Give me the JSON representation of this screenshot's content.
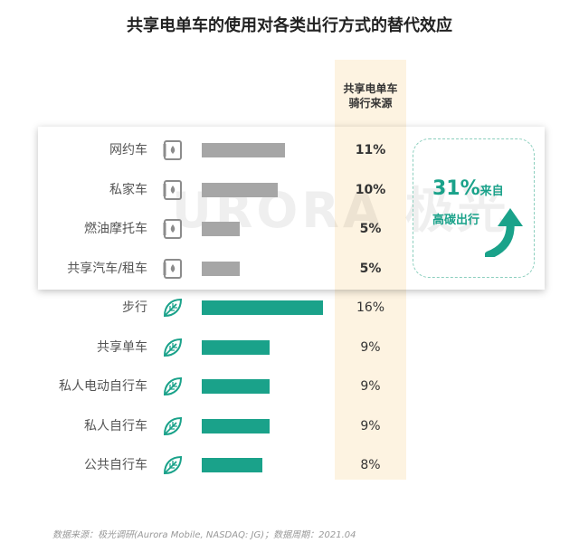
{
  "title": "共享电单车的使用对各类出行方式的替代效应",
  "column_header_line1": "共享电单车",
  "column_header_line2": "骑行来源",
  "watermark": "URORA 极光",
  "callout": {
    "big": "31%",
    "small": "来自",
    "line2": "高碳出行"
  },
  "footer": "数据来源：极光调研(Aurora Mobile, NASDAQ: JG)；数据周期：2021.04",
  "colors": {
    "high_carbon": "#a6a6a6",
    "low_carbon": "#1aa28a",
    "column_bg": "#fdf3e1"
  },
  "chart_data": {
    "type": "bar",
    "orientation": "horizontal",
    "categories": [
      "网约车",
      "私家车",
      "燃油摩托车",
      "共享汽车/租车",
      "步行",
      "共享单车",
      "私人电动自行车",
      "私人自行车",
      "公共自行车"
    ],
    "values": [
      11,
      10,
      5,
      5,
      16,
      9,
      9,
      9,
      8
    ],
    "labels": [
      "11%",
      "10%",
      "5%",
      "5%",
      "16%",
      "9%",
      "9%",
      "9%",
      "8%"
    ],
    "groups": [
      "high",
      "high",
      "high",
      "high",
      "low",
      "low",
      "low",
      "low",
      "low"
    ],
    "icons": [
      "fuel-icon",
      "fuel-icon",
      "fuel-icon",
      "fuel-icon",
      "leaf-icon",
      "leaf-icon",
      "leaf-icon",
      "leaf-icon",
      "leaf-icon"
    ],
    "xlim": [
      0,
      16
    ]
  }
}
